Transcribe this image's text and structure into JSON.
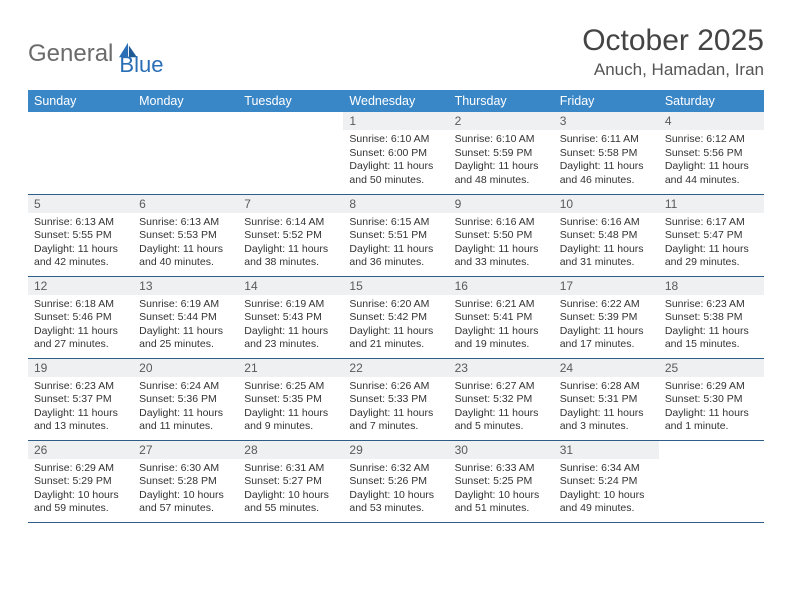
{
  "logo": {
    "text1": "General",
    "text2": "Blue"
  },
  "title": "October 2025",
  "location": "Anuch, Hamadan, Iran",
  "colors": {
    "header_bg": "#3a87c8",
    "header_text": "#ffffff",
    "daynum_bg": "#eef0f2",
    "border": "#2f5d8a",
    "logo_gray": "#6b6b6b",
    "logo_blue": "#2a6fb5"
  },
  "day_headers": [
    "Sunday",
    "Monday",
    "Tuesday",
    "Wednesday",
    "Thursday",
    "Friday",
    "Saturday"
  ],
  "weeks": [
    [
      null,
      null,
      null,
      {
        "n": "1",
        "sr": "6:10 AM",
        "ss": "6:00 PM",
        "dl": "11 hours and 50 minutes."
      },
      {
        "n": "2",
        "sr": "6:10 AM",
        "ss": "5:59 PM",
        "dl": "11 hours and 48 minutes."
      },
      {
        "n": "3",
        "sr": "6:11 AM",
        "ss": "5:58 PM",
        "dl": "11 hours and 46 minutes."
      },
      {
        "n": "4",
        "sr": "6:12 AM",
        "ss": "5:56 PM",
        "dl": "11 hours and 44 minutes."
      }
    ],
    [
      {
        "n": "5",
        "sr": "6:13 AM",
        "ss": "5:55 PM",
        "dl": "11 hours and 42 minutes."
      },
      {
        "n": "6",
        "sr": "6:13 AM",
        "ss": "5:53 PM",
        "dl": "11 hours and 40 minutes."
      },
      {
        "n": "7",
        "sr": "6:14 AM",
        "ss": "5:52 PM",
        "dl": "11 hours and 38 minutes."
      },
      {
        "n": "8",
        "sr": "6:15 AM",
        "ss": "5:51 PM",
        "dl": "11 hours and 36 minutes."
      },
      {
        "n": "9",
        "sr": "6:16 AM",
        "ss": "5:50 PM",
        "dl": "11 hours and 33 minutes."
      },
      {
        "n": "10",
        "sr": "6:16 AM",
        "ss": "5:48 PM",
        "dl": "11 hours and 31 minutes."
      },
      {
        "n": "11",
        "sr": "6:17 AM",
        "ss": "5:47 PM",
        "dl": "11 hours and 29 minutes."
      }
    ],
    [
      {
        "n": "12",
        "sr": "6:18 AM",
        "ss": "5:46 PM",
        "dl": "11 hours and 27 minutes."
      },
      {
        "n": "13",
        "sr": "6:19 AM",
        "ss": "5:44 PM",
        "dl": "11 hours and 25 minutes."
      },
      {
        "n": "14",
        "sr": "6:19 AM",
        "ss": "5:43 PM",
        "dl": "11 hours and 23 minutes."
      },
      {
        "n": "15",
        "sr": "6:20 AM",
        "ss": "5:42 PM",
        "dl": "11 hours and 21 minutes."
      },
      {
        "n": "16",
        "sr": "6:21 AM",
        "ss": "5:41 PM",
        "dl": "11 hours and 19 minutes."
      },
      {
        "n": "17",
        "sr": "6:22 AM",
        "ss": "5:39 PM",
        "dl": "11 hours and 17 minutes."
      },
      {
        "n": "18",
        "sr": "6:23 AM",
        "ss": "5:38 PM",
        "dl": "11 hours and 15 minutes."
      }
    ],
    [
      {
        "n": "19",
        "sr": "6:23 AM",
        "ss": "5:37 PM",
        "dl": "11 hours and 13 minutes."
      },
      {
        "n": "20",
        "sr": "6:24 AM",
        "ss": "5:36 PM",
        "dl": "11 hours and 11 minutes."
      },
      {
        "n": "21",
        "sr": "6:25 AM",
        "ss": "5:35 PM",
        "dl": "11 hours and 9 minutes."
      },
      {
        "n": "22",
        "sr": "6:26 AM",
        "ss": "5:33 PM",
        "dl": "11 hours and 7 minutes."
      },
      {
        "n": "23",
        "sr": "6:27 AM",
        "ss": "5:32 PM",
        "dl": "11 hours and 5 minutes."
      },
      {
        "n": "24",
        "sr": "6:28 AM",
        "ss": "5:31 PM",
        "dl": "11 hours and 3 minutes."
      },
      {
        "n": "25",
        "sr": "6:29 AM",
        "ss": "5:30 PM",
        "dl": "11 hours and 1 minute."
      }
    ],
    [
      {
        "n": "26",
        "sr": "6:29 AM",
        "ss": "5:29 PM",
        "dl": "10 hours and 59 minutes."
      },
      {
        "n": "27",
        "sr": "6:30 AM",
        "ss": "5:28 PM",
        "dl": "10 hours and 57 minutes."
      },
      {
        "n": "28",
        "sr": "6:31 AM",
        "ss": "5:27 PM",
        "dl": "10 hours and 55 minutes."
      },
      {
        "n": "29",
        "sr": "6:32 AM",
        "ss": "5:26 PM",
        "dl": "10 hours and 53 minutes."
      },
      {
        "n": "30",
        "sr": "6:33 AM",
        "ss": "5:25 PM",
        "dl": "10 hours and 51 minutes."
      },
      {
        "n": "31",
        "sr": "6:34 AM",
        "ss": "5:24 PM",
        "dl": "10 hours and 49 minutes."
      },
      null
    ]
  ],
  "labels": {
    "sunrise": "Sunrise: ",
    "sunset": "Sunset: ",
    "daylight": "Daylight: "
  }
}
